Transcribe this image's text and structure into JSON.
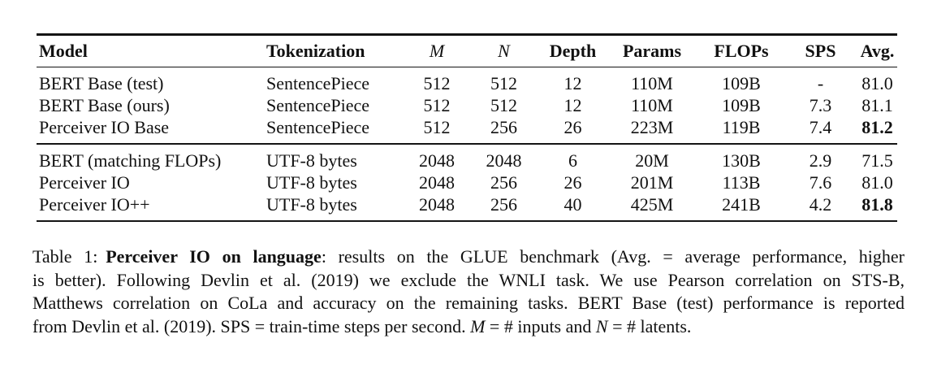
{
  "table": {
    "columns": [
      "Model",
      "Tokenization",
      "M",
      "N",
      "Depth",
      "Params",
      "FLOPs",
      "SPS",
      "Avg."
    ],
    "rows": [
      {
        "model": "BERT Base (test)",
        "tokenization": "SentencePiece",
        "m": "512",
        "n": "512",
        "depth": "12",
        "params": "110M",
        "flops": "109B",
        "sps": "-",
        "avg": "81.0"
      },
      {
        "model": "BERT Base (ours)",
        "tokenization": "SentencePiece",
        "m": "512",
        "n": "512",
        "depth": "12",
        "params": "110M",
        "flops": "109B",
        "sps": "7.3",
        "avg": "81.1"
      },
      {
        "model": "Perceiver IO Base",
        "tokenization": "SentencePiece",
        "m": "512",
        "n": "256",
        "depth": "26",
        "params": "223M",
        "flops": "119B",
        "sps": "7.4",
        "avg": "81.2"
      },
      {
        "model": "BERT (matching FLOPs)",
        "tokenization": "UTF-8 bytes",
        "m": "2048",
        "n": "2048",
        "depth": "6",
        "params": "20M",
        "flops": "130B",
        "sps": "2.9",
        "avg": "71.5"
      },
      {
        "model": "Perceiver IO",
        "tokenization": "UTF-8 bytes",
        "m": "2048",
        "n": "256",
        "depth": "26",
        "params": "201M",
        "flops": "113B",
        "sps": "7.6",
        "avg": "81.0"
      },
      {
        "model": "Perceiver IO++",
        "tokenization": "UTF-8 bytes",
        "m": "2048",
        "n": "256",
        "depth": "40",
        "params": "425M",
        "flops": "241B",
        "sps": "4.2",
        "avg": "81.8"
      }
    ]
  },
  "caption": {
    "line1_prefix": "Table 1:",
    "line1_bold": "Perceiver IO on language",
    "line1_rest": ": results on the GLUE benchmark (Avg. = average performance, higher",
    "line2": "is better). Following Devlin et al. (2019) we exclude the WNLI task. We use Pearson correlation on STS-B,",
    "line3": "Matthews correlation on CoLa and accuracy on the remaining tasks. BERT Base (test) performance is reported",
    "line4_a": "from Devlin et al. (2019). SPS = train-time steps per second. ",
    "line4_m": "M",
    "line4_b": " = # inputs and ",
    "line4_n": "N",
    "line4_c": " = # latents."
  }
}
